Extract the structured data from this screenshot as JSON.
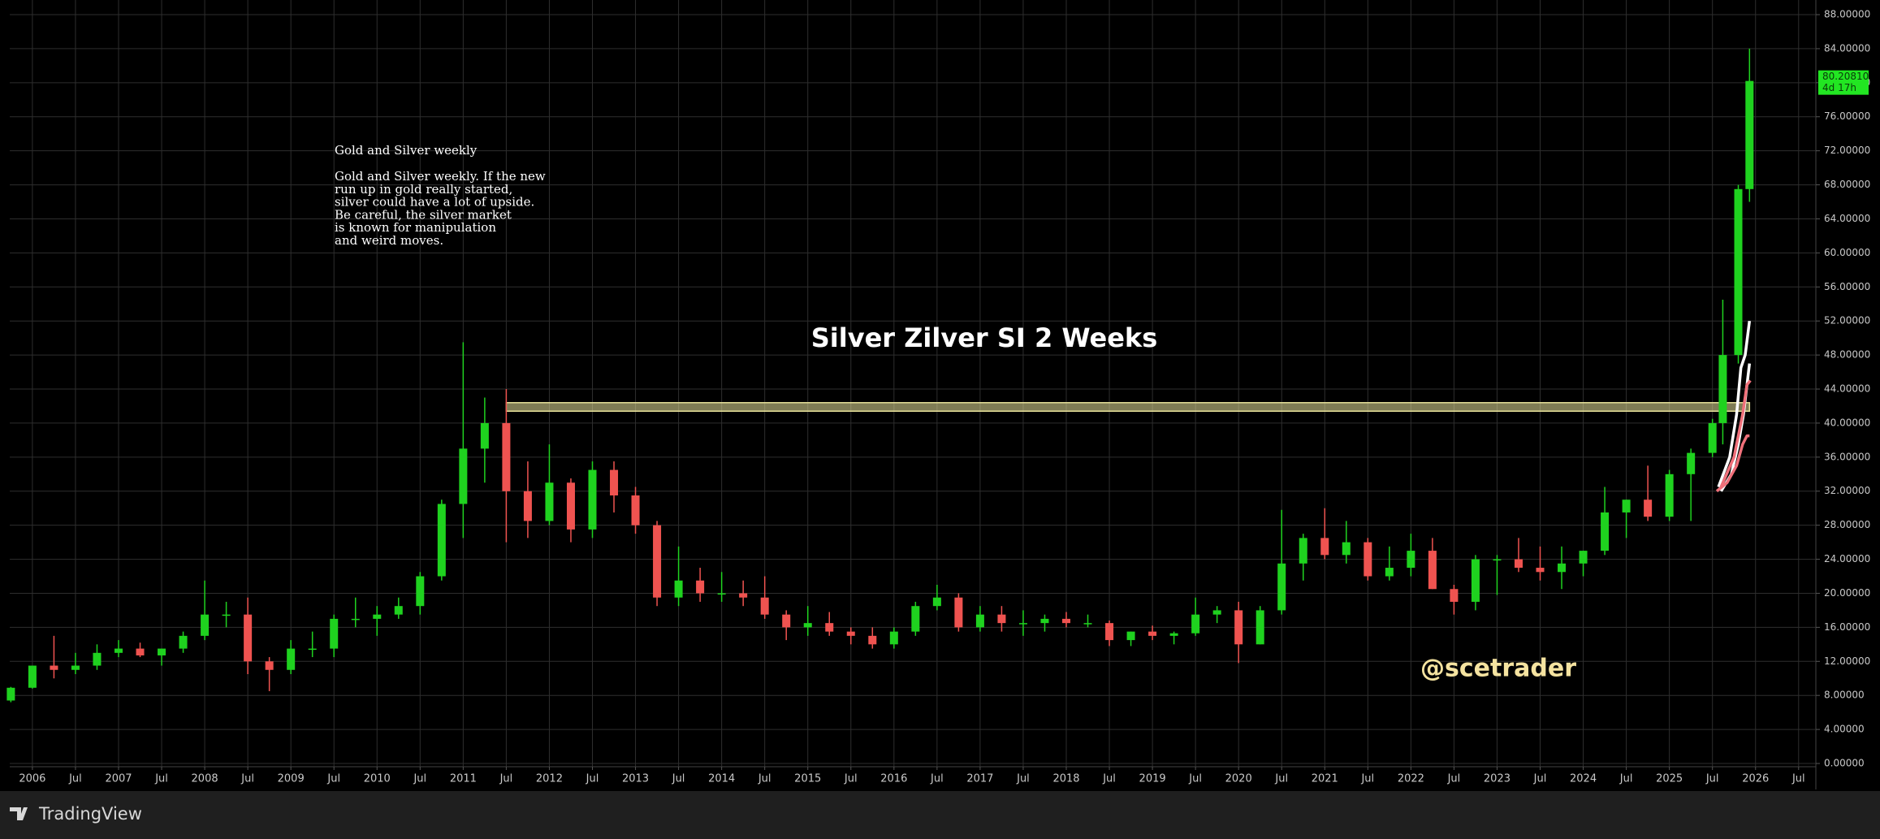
{
  "chart_data": {
    "type": "candlestick",
    "title": "Silver Zilver SI 2 Weeks",
    "watermark": "@scetrader",
    "branding": "TradingView",
    "annotation": {
      "title": "Gold and Silver weekly",
      "lines": [
        "Gold and Silver weekly. If the new",
        "run up in gold really started,",
        "silver could have a lot of upside.",
        "Be careful, the silver market",
        "is known for manipulation",
        "and weird moves."
      ]
    },
    "colors": {
      "up": "#1fd21f",
      "down": "#ef5350"
    },
    "grid": true,
    "xlim": [
      2005.737,
      2026.7
    ],
    "ylim": [
      -0.38,
      89.72
    ],
    "xticks": [
      2006,
      {
        "value": 2006.5,
        "label": "Jul"
      },
      2007,
      {
        "value": 2007.5,
        "label": "Jul"
      },
      2008,
      {
        "value": 2008.5,
        "label": "Jul"
      },
      2009,
      {
        "value": 2009.5,
        "label": "Jul"
      },
      2010,
      {
        "value": 2010.5,
        "label": "Jul"
      },
      2011,
      {
        "value": 2011.5,
        "label": "Jul"
      },
      2012,
      {
        "value": 2012.5,
        "label": "Jul"
      },
      2013,
      {
        "value": 2013.5,
        "label": "Jul"
      },
      2014,
      {
        "value": 2014.5,
        "label": "Jul"
      },
      2015,
      {
        "value": 2015.5,
        "label": "Jul"
      },
      2016,
      {
        "value": 2016.5,
        "label": "Jul"
      },
      2017,
      {
        "value": 2017.5,
        "label": "Jul"
      },
      2018,
      {
        "value": 2018.5,
        "label": "Jul"
      },
      2019,
      {
        "value": 2019.5,
        "label": "Jul"
      },
      2020,
      {
        "value": 2020.5,
        "label": "Jul"
      },
      2021,
      {
        "value": 2021.5,
        "label": "Jul"
      },
      2022,
      {
        "value": 2022.5,
        "label": "Jul"
      },
      2023,
      {
        "value": 2023.5,
        "label": "Jul"
      },
      2024,
      {
        "value": 2024.5,
        "label": "Jul"
      },
      2025,
      {
        "value": 2025.5,
        "label": "Jul"
      },
      2026,
      {
        "value": 2026.5,
        "label": "Jul"
      }
    ],
    "yticks": [
      {
        "value": 0,
        "label": "0.00000"
      },
      {
        "value": 4,
        "label": "4.00000"
      },
      {
        "value": 8,
        "label": "8.00000"
      },
      {
        "value": 12,
        "label": "12.00000"
      },
      {
        "value": 16,
        "label": "16.00000"
      },
      {
        "value": 20,
        "label": "20.00000"
      },
      {
        "value": 24,
        "label": "24.00000"
      },
      {
        "value": 28,
        "label": "28.00000"
      },
      {
        "value": 32,
        "label": "32.00000"
      },
      {
        "value": 36,
        "label": "36.00000"
      },
      {
        "value": 40,
        "label": "40.00000"
      },
      {
        "value": 44,
        "label": "44.00000"
      },
      {
        "value": 48,
        "label": "48.00000"
      },
      {
        "value": 52,
        "label": "52.00000"
      },
      {
        "value": 56,
        "label": "56.00000"
      },
      {
        "value": 60,
        "label": "60.00000"
      },
      {
        "value": 64,
        "label": "64.00000"
      },
      {
        "value": 68,
        "label": "68.00000"
      },
      {
        "value": 72,
        "label": "72.00000"
      },
      {
        "value": 76,
        "label": "76.00000"
      },
      {
        "value": 80,
        "label": "80.00000"
      },
      {
        "value": 84,
        "label": "84.00000"
      },
      {
        "value": 88,
        "label": "88.00000"
      }
    ],
    "x": [
      2005.75,
      2006.0,
      2006.25,
      2006.5,
      2006.75,
      2007.0,
      2007.25,
      2007.5,
      2007.75,
      2008.0,
      2008.25,
      2008.5,
      2008.75,
      2009.0,
      2009.25,
      2009.5,
      2009.75,
      2010.0,
      2010.25,
      2010.5,
      2010.75,
      2011.0,
      2011.25,
      2011.5,
      2011.75,
      2012.0,
      2012.25,
      2012.5,
      2012.75,
      2013.0,
      2013.25,
      2013.5,
      2013.75,
      2014.0,
      2014.25,
      2014.5,
      2014.75,
      2015.0,
      2015.25,
      2015.5,
      2015.75,
      2016.0,
      2016.25,
      2016.5,
      2016.75,
      2017.0,
      2017.25,
      2017.5,
      2017.75,
      2018.0,
      2018.25,
      2018.5,
      2018.75,
      2019.0,
      2019.25,
      2019.5,
      2019.75,
      2020.0,
      2020.25,
      2020.5,
      2020.75,
      2021.0,
      2021.25,
      2021.5,
      2021.75,
      2022.0,
      2022.25,
      2022.5,
      2022.75,
      2023.0,
      2023.25,
      2023.5,
      2023.75,
      2024.0,
      2024.25,
      2024.5,
      2024.75,
      2025.0,
      2025.25,
      2025.5,
      2025.62,
      2025.8,
      2025.93
    ],
    "open": [
      7.4,
      8.9,
      11.5,
      11.0,
      11.5,
      13.0,
      13.5,
      12.7,
      13.5,
      15.0,
      17.5,
      17.5,
      12.0,
      11.0,
      13.5,
      13.5,
      17.0,
      17.0,
      17.5,
      18.5,
      22.0,
      30.5,
      37.0,
      40.0,
      32.0,
      28.5,
      33.0,
      27.5,
      34.5,
      31.5,
      28.0,
      19.5,
      21.5,
      20.0,
      20.0,
      19.5,
      17.5,
      16.0,
      16.5,
      15.5,
      15.0,
      14.0,
      15.5,
      18.5,
      19.5,
      16.0,
      17.5,
      16.5,
      16.5,
      17.0,
      16.5,
      16.5,
      14.5,
      15.5,
      15.0,
      15.3,
      17.5,
      18.0,
      14.0,
      18.0,
      23.5,
      26.5,
      24.5,
      26.0,
      22.0,
      23.0,
      25.0,
      20.5,
      19.0,
      24.0,
      24.0,
      23.0,
      22.5,
      23.5,
      25.0,
      29.5,
      31.0,
      29.0,
      34.0,
      36.5,
      40.0,
      48.0,
      67.5
    ],
    "high": [
      9.0,
      11.5,
      15.0,
      13.0,
      14.0,
      14.5,
      14.2,
      13.5,
      15.5,
      21.5,
      19.0,
      19.5,
      12.5,
      14.5,
      15.5,
      17.5,
      19.5,
      18.5,
      19.5,
      22.5,
      31.0,
      49.5,
      43.0,
      44.0,
      35.5,
      37.5,
      33.5,
      35.5,
      35.5,
      32.5,
      28.5,
      25.5,
      23.0,
      22.5,
      21.5,
      22.0,
      18.0,
      18.5,
      17.8,
      16.0,
      16.0,
      16.0,
      19.0,
      21.0,
      20.0,
      18.5,
      18.5,
      18.0,
      17.5,
      17.8,
      17.5,
      16.8,
      15.5,
      16.2,
      15.5,
      19.5,
      18.5,
      19.0,
      18.5,
      29.8,
      27.0,
      30.0,
      28.5,
      26.5,
      25.5,
      27.0,
      26.5,
      21.0,
      24.5,
      24.5,
      26.5,
      25.5,
      25.5,
      25.0,
      32.5,
      31.0,
      35.0,
      34.5,
      37.0,
      40.5,
      54.5,
      68.0,
      84.0
    ],
    "low": [
      7.2,
      8.8,
      10.0,
      10.5,
      11.0,
      12.5,
      12.5,
      11.5,
      13.0,
      14.5,
      16.0,
      10.5,
      8.5,
      10.5,
      12.5,
      12.5,
      16.0,
      15.0,
      17.0,
      17.5,
      21.5,
      26.5,
      33.0,
      26.0,
      26.5,
      28.0,
      26.0,
      26.5,
      29.5,
      27.0,
      18.5,
      18.5,
      19.0,
      19.0,
      18.5,
      17.0,
      14.5,
      15.0,
      15.0,
      14.0,
      13.5,
      13.5,
      15.0,
      18.0,
      15.5,
      15.5,
      15.5,
      15.0,
      15.5,
      16.0,
      16.0,
      13.8,
      13.8,
      14.5,
      14.0,
      15.0,
      16.5,
      11.8,
      14.0,
      17.5,
      21.5,
      24.0,
      23.5,
      21.5,
      21.5,
      22.0,
      20.5,
      17.5,
      18.0,
      19.8,
      22.5,
      21.5,
      20.5,
      22.0,
      24.5,
      26.5,
      28.5,
      28.5,
      28.5,
      36.0,
      37.5,
      47.0,
      66.0
    ],
    "close": [
      8.9,
      11.5,
      11.0,
      11.5,
      13.0,
      13.5,
      12.7,
      13.5,
      15.0,
      17.5,
      17.5,
      12.0,
      11.0,
      13.5,
      13.5,
      17.0,
      17.0,
      17.5,
      18.5,
      22.0,
      30.5,
      37.0,
      40.0,
      32.0,
      28.5,
      33.0,
      27.5,
      34.5,
      31.5,
      28.0,
      19.5,
      21.5,
      20.0,
      20.0,
      19.5,
      17.5,
      16.0,
      16.5,
      15.5,
      15.0,
      14.0,
      15.5,
      18.5,
      19.5,
      16.0,
      17.5,
      16.5,
      16.5,
      17.0,
      16.5,
      16.5,
      14.5,
      15.5,
      15.0,
      15.3,
      17.5,
      18.0,
      14.0,
      18.0,
      23.5,
      26.5,
      24.5,
      26.0,
      22.0,
      23.0,
      25.0,
      20.5,
      19.0,
      24.0,
      24.0,
      23.0,
      22.5,
      23.5,
      25.0,
      29.5,
      31.0,
      29.0,
      34.0,
      36.5,
      40.0,
      48.0,
      67.5,
      80.2081
    ],
    "overlays": [
      {
        "color": "#ffffff",
        "x": [
          2025.57,
          2025.7,
          2025.78,
          2025.83,
          2025.88,
          2025.93
        ],
        "values": [
          32.5,
          36,
          41,
          46.5,
          48,
          52
        ]
      },
      {
        "color": "#ffffff",
        "x": [
          2025.6,
          2025.72,
          2025.8,
          2025.86,
          2025.93
        ],
        "values": [
          32,
          34,
          37.5,
          41,
          47
        ]
      },
      {
        "color": "#f0707a",
        "x": [
          2025.6,
          2025.75,
          2025.85,
          2025.9,
          2025.94
        ],
        "values": [
          32.5,
          36,
          41,
          44.5,
          45
        ]
      },
      {
        "color": "#f0707a",
        "x": [
          2025.55,
          2025.67,
          2025.78,
          2025.85,
          2025.9,
          2025.93
        ],
        "values": [
          32,
          33,
          35,
          37.5,
          38.5,
          38.5
        ]
      }
    ],
    "zone": {
      "color": "#e8e29a",
      "x": [
        2011.5,
        2025.93
      ],
      "y": [
        41.4,
        42.4
      ]
    },
    "last_price": {
      "value": 80.2081,
      "label": "80.20810",
      "countdown": "4d 17h",
      "color": "#22e622"
    }
  }
}
